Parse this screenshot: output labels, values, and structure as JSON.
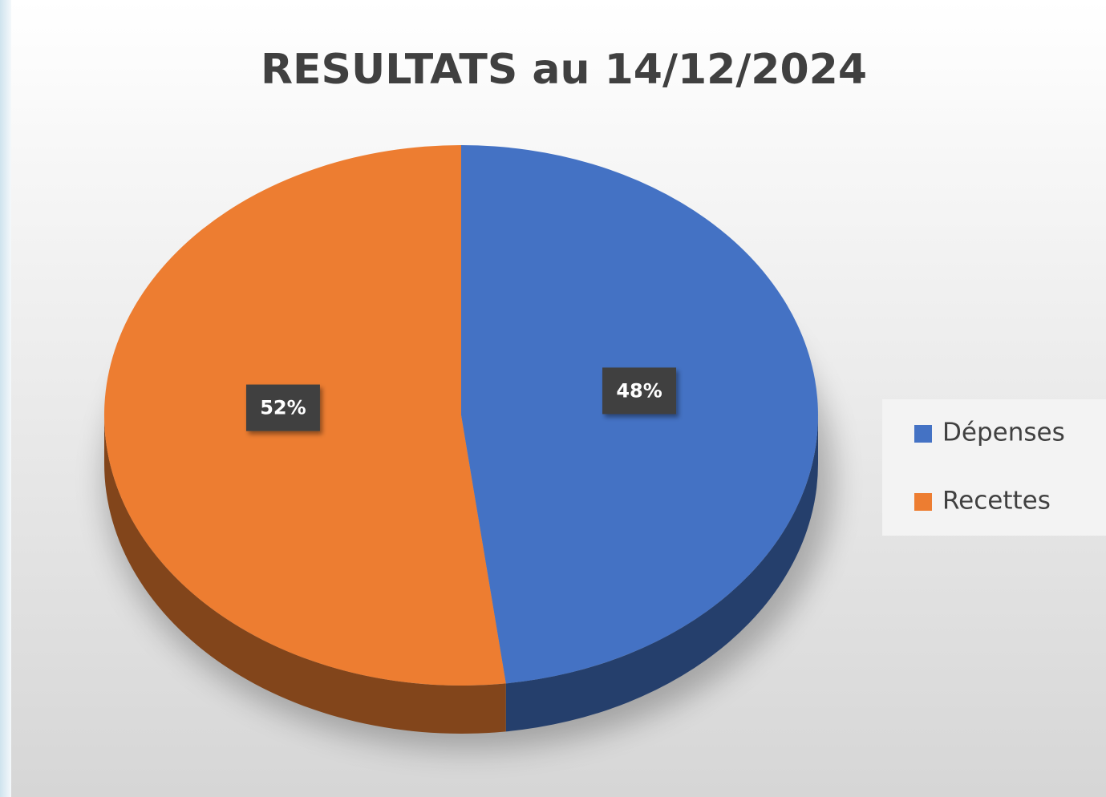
{
  "chart_data": {
    "type": "pie",
    "title": "RESULTATS au 14/12/2024",
    "categories": [
      "Dépenses",
      "Recettes"
    ],
    "values": [
      48,
      52
    ],
    "value_labels": [
      "48%",
      "52%"
    ],
    "colors": [
      "#4472c4",
      "#ed7d31"
    ],
    "legend": "right"
  }
}
